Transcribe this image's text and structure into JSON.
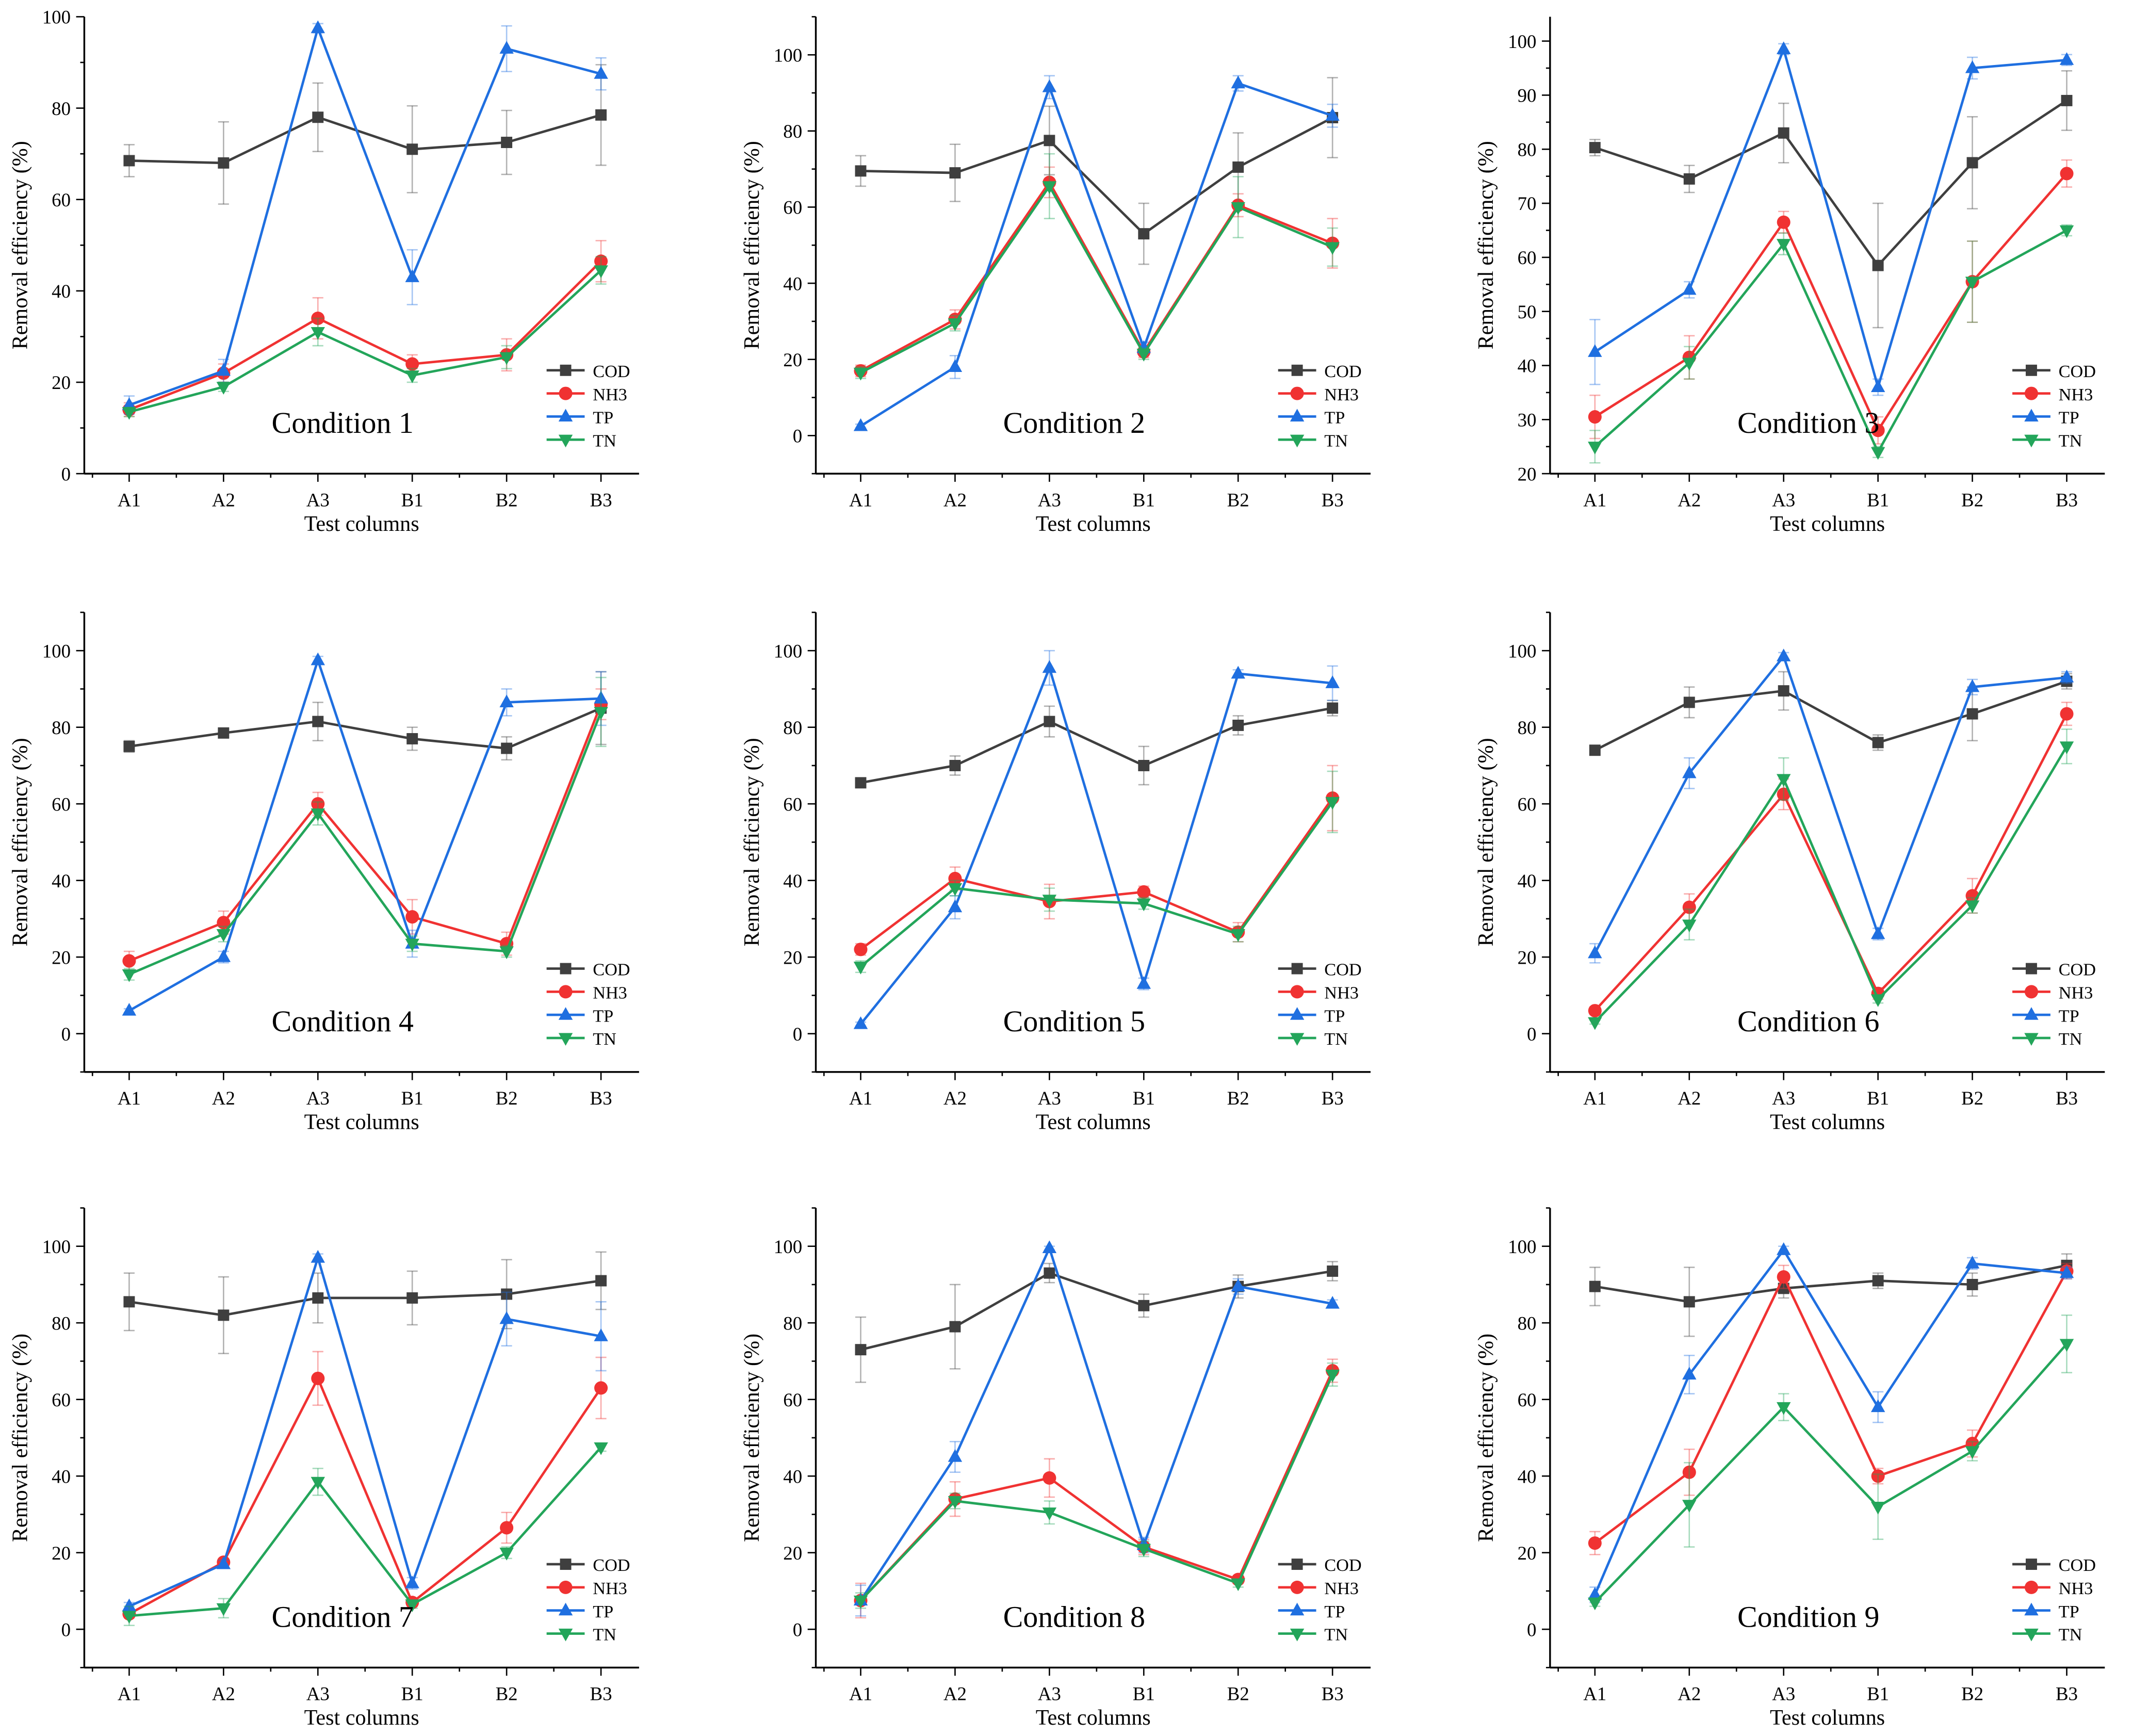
{
  "colors": {
    "COD": "#3f3f3f",
    "NH3": "#f03232",
    "TP": "#1f6fe0",
    "TN": "#23a55a",
    "axis": "#000000"
  },
  "chart_data": [
    {
      "type": "line",
      "title": "Condition 1",
      "xlabel": "Test columns",
      "ylabel": "Removal efficiency (%)",
      "categories": [
        "A1",
        "A2",
        "A3",
        "B1",
        "B2",
        "B3"
      ],
      "ylim": [
        0,
        100
      ],
      "yticks": [
        0,
        20,
        40,
        60,
        80,
        100
      ],
      "legend": "bottom-right",
      "grid": false,
      "series": [
        {
          "name": "COD",
          "marker": "square",
          "values": [
            68.5,
            68,
            78,
            71,
            72.5,
            78.5
          ],
          "errors": [
            3.5,
            9,
            7.5,
            9.5,
            7,
            11
          ]
        },
        {
          "name": "NH3",
          "marker": "circle",
          "values": [
            14,
            22,
            34,
            24,
            26,
            46.5
          ],
          "errors": [
            1.5,
            2,
            4.5,
            2,
            3.5,
            4.5
          ]
        },
        {
          "name": "TP",
          "marker": "triangle-up",
          "values": [
            15,
            22.5,
            97.5,
            43,
            93,
            87.5
          ],
          "errors": [
            2,
            2.5,
            1,
            6,
            5,
            3.5
          ]
        },
        {
          "name": "TN",
          "marker": "triangle-down",
          "values": [
            13.5,
            19,
            31,
            21.5,
            25.5,
            44.5
          ],
          "errors": [
            1,
            1,
            3,
            1.5,
            2.5,
            3
          ]
        }
      ]
    },
    {
      "type": "line",
      "title": "Condition 2",
      "xlabel": "Test columns",
      "ylabel": "Removal efficiency (%)",
      "categories": [
        "A1",
        "A2",
        "A3",
        "B1",
        "B2",
        "B3"
      ],
      "ylim": [
        -10,
        110
      ],
      "yticks": [
        0,
        20,
        40,
        60,
        80,
        100
      ],
      "legend": "bottom-right",
      "grid": false,
      "series": [
        {
          "name": "COD",
          "marker": "square",
          "values": [
            69.5,
            69,
            77.5,
            53,
            70.5,
            83.5
          ],
          "errors": [
            4,
            7.5,
            9,
            8,
            9,
            10.5
          ]
        },
        {
          "name": "NH3",
          "marker": "circle",
          "values": [
            17,
            30.5,
            66.5,
            22,
            60.5,
            50.5
          ],
          "errors": [
            1.5,
            2.5,
            4,
            1.5,
            3,
            6.5
          ]
        },
        {
          "name": "TP",
          "marker": "triangle-up",
          "values": [
            2.5,
            18,
            91.5,
            23,
            92.5,
            84
          ],
          "errors": [
            0.5,
            3,
            3,
            1.5,
            2,
            3
          ]
        },
        {
          "name": "TN",
          "marker": "triangle-down",
          "values": [
            16.5,
            29.5,
            65.5,
            21.5,
            60,
            49.5
          ],
          "errors": [
            1.5,
            2,
            8.5,
            1.5,
            8,
            5
          ]
        }
      ]
    },
    {
      "type": "line",
      "title": "Condition 3",
      "xlabel": "Test columns",
      "ylabel": "Removal efficiency (%)",
      "categories": [
        "A1",
        "A2",
        "A3",
        "B1",
        "B2",
        "B3"
      ],
      "ylim": [
        20,
        104.5
      ],
      "yticks": [
        20,
        30,
        40,
        50,
        60,
        70,
        80,
        90,
        100
      ],
      "legend": "bottom-right",
      "grid": false,
      "series": [
        {
          "name": "COD",
          "marker": "square",
          "values": [
            80.3,
            74.5,
            83,
            58.5,
            77.5,
            89
          ],
          "errors": [
            1.5,
            2.5,
            5.5,
            11.5,
            8.5,
            5.5
          ]
        },
        {
          "name": "NH3",
          "marker": "circle",
          "values": [
            30.5,
            41.5,
            66.5,
            28,
            55.5,
            75.5
          ],
          "errors": [
            4,
            4,
            2,
            2.5,
            7.5,
            2.5
          ]
        },
        {
          "name": "TP",
          "marker": "triangle-up",
          "values": [
            42.5,
            54,
            98.5,
            36,
            95,
            96.5
          ],
          "errors": [
            6,
            1.5,
            1,
            1.5,
            2,
            1
          ]
        },
        {
          "name": "TN",
          "marker": "triangle-down",
          "values": [
            25,
            40.5,
            62.5,
            24,
            55.5,
            65
          ],
          "errors": [
            3,
            3,
            2,
            1,
            7.5,
            1
          ]
        }
      ]
    },
    {
      "type": "line",
      "title": "Condition 4",
      "xlabel": "Test columns",
      "ylabel": "Removal efficiency (%)",
      "categories": [
        "A1",
        "A2",
        "A3",
        "B1",
        "B2",
        "B3"
      ],
      "ylim": [
        -10,
        110
      ],
      "yticks": [
        0,
        20,
        40,
        60,
        80,
        100
      ],
      "legend": "bottom-right",
      "grid": false,
      "series": [
        {
          "name": "COD",
          "marker": "square",
          "values": [
            75,
            78.5,
            81.5,
            77,
            74.5,
            85
          ],
          "errors": [
            1.5,
            1,
            5,
            3,
            3,
            9.5
          ]
        },
        {
          "name": "NH3",
          "marker": "circle",
          "values": [
            19,
            29,
            60,
            30.5,
            23.5,
            86
          ],
          "errors": [
            2.5,
            3,
            3,
            4.5,
            3,
            4
          ]
        },
        {
          "name": "TP",
          "marker": "triangle-up",
          "values": [
            6,
            20,
            97.5,
            23.5,
            86.5,
            87.5
          ],
          "errors": [
            0.5,
            1.5,
            1,
            3.5,
            3.5,
            7
          ]
        },
        {
          "name": "TN",
          "marker": "triangle-down",
          "values": [
            15.5,
            26,
            57.5,
            23.5,
            21.5,
            84
          ],
          "errors": [
            1.5,
            2,
            3,
            2,
            1.5,
            9
          ]
        }
      ]
    },
    {
      "type": "line",
      "title": "Condition 5",
      "xlabel": "Test columns",
      "ylabel": "Removal efficiency (%)",
      "categories": [
        "A1",
        "A2",
        "A3",
        "B1",
        "B2",
        "B3"
      ],
      "ylim": [
        -10,
        110
      ],
      "yticks": [
        0,
        20,
        40,
        60,
        80,
        100
      ],
      "legend": "bottom-right",
      "grid": false,
      "series": [
        {
          "name": "COD",
          "marker": "square",
          "values": [
            65.5,
            70,
            81.5,
            70,
            80.5,
            85
          ],
          "errors": [
            1,
            2.5,
            4,
            5,
            2.5,
            2
          ]
        },
        {
          "name": "NH3",
          "marker": "circle",
          "values": [
            22,
            40.5,
            34.5,
            37,
            26.5,
            61.5
          ],
          "errors": [
            1.5,
            3,
            4.5,
            1.5,
            2.5,
            8.5
          ]
        },
        {
          "name": "TP",
          "marker": "triangle-up",
          "values": [
            2.5,
            33,
            95.5,
            13,
            94,
            91.5
          ],
          "errors": [
            0.5,
            3,
            4.5,
            1.5,
            1,
            4.5
          ]
        },
        {
          "name": "TN",
          "marker": "triangle-down",
          "values": [
            17.5,
            38,
            35,
            34,
            26,
            60.5
          ],
          "errors": [
            1.5,
            2,
            3,
            1.5,
            2,
            8
          ]
        }
      ]
    },
    {
      "type": "line",
      "title": "Condition 6",
      "xlabel": "Test columns",
      "ylabel": "Removal efficiency (%)",
      "categories": [
        "A1",
        "A2",
        "A3",
        "B1",
        "B2",
        "B3"
      ],
      "ylim": [
        -10,
        110
      ],
      "yticks": [
        0,
        20,
        40,
        60,
        80,
        100
      ],
      "legend": "bottom-right",
      "grid": false,
      "series": [
        {
          "name": "COD",
          "marker": "square",
          "values": [
            74,
            86.5,
            89.5,
            76,
            83.5,
            92
          ],
          "errors": [
            1,
            4,
            5,
            2,
            7,
            2
          ]
        },
        {
          "name": "NH3",
          "marker": "circle",
          "values": [
            6,
            33,
            62.5,
            10.5,
            36,
            83.5
          ],
          "errors": [
            1,
            3.5,
            4,
            1.5,
            4.5,
            3
          ]
        },
        {
          "name": "TP",
          "marker": "triangle-up",
          "values": [
            21,
            68,
            98.5,
            26,
            90.5,
            93
          ],
          "errors": [
            2.5,
            4,
            1,
            1.5,
            2,
            1.5
          ]
        },
        {
          "name": "TN",
          "marker": "triangle-down",
          "values": [
            3,
            28.5,
            66.5,
            9,
            33.5,
            75
          ],
          "errors": [
            0.5,
            4,
            5.5,
            1,
            2,
            4.5
          ]
        }
      ]
    },
    {
      "type": "line",
      "title": "Condition 7",
      "xlabel": "Test columns",
      "ylabel": "Removal efficiency (%)",
      "categories": [
        "A1",
        "A2",
        "A3",
        "B1",
        "B2",
        "B3"
      ],
      "ylim": [
        -10,
        110
      ],
      "yticks": [
        0,
        20,
        40,
        60,
        80,
        100
      ],
      "legend": "bottom-right",
      "grid": false,
      "series": [
        {
          "name": "COD",
          "marker": "square",
          "values": [
            85.5,
            82,
            86.5,
            86.5,
            87.5,
            91
          ],
          "errors": [
            7.5,
            10,
            6.5,
            7,
            9,
            7.5
          ]
        },
        {
          "name": "NH3",
          "marker": "circle",
          "values": [
            4,
            17.5,
            65.5,
            7,
            26.5,
            63
          ],
          "errors": [
            1,
            1,
            7,
            1,
            4,
            8
          ]
        },
        {
          "name": "TP",
          "marker": "triangle-up",
          "values": [
            6,
            17,
            97,
            12,
            81,
            76.5
          ],
          "errors": [
            1,
            1,
            1,
            1.5,
            7,
            9
          ]
        },
        {
          "name": "TN",
          "marker": "triangle-down",
          "values": [
            3.5,
            5.5,
            38.5,
            6.5,
            20,
            47.5
          ],
          "errors": [
            2.5,
            2.5,
            3.5,
            1,
            1.5,
            1
          ]
        }
      ]
    },
    {
      "type": "line",
      "title": "Condition 8",
      "xlabel": "Test columns",
      "ylabel": "Removal efficiency (%)",
      "categories": [
        "A1",
        "A2",
        "A3",
        "B1",
        "B2",
        "B3"
      ],
      "ylim": [
        -10,
        110
      ],
      "yticks": [
        0,
        20,
        40,
        60,
        80,
        100
      ],
      "legend": "bottom-right",
      "grid": false,
      "series": [
        {
          "name": "COD",
          "marker": "square",
          "values": [
            73,
            79,
            93,
            84.5,
            89.5,
            93.5
          ],
          "errors": [
            8.5,
            11,
            2.5,
            3,
            3,
            2.5
          ]
        },
        {
          "name": "NH3",
          "marker": "circle",
          "values": [
            7.5,
            34,
            39.5,
            21.5,
            13,
            67.5
          ],
          "errors": [
            4.5,
            4.5,
            5,
            2,
            1,
            3
          ]
        },
        {
          "name": "TP",
          "marker": "triangle-up",
          "values": [
            7.5,
            45,
            99.5,
            22,
            89.5,
            85
          ],
          "errors": [
            4,
            4,
            0.5,
            2,
            2,
            1
          ]
        },
        {
          "name": "TN",
          "marker": "triangle-down",
          "values": [
            7.5,
            33.5,
            30.5,
            21,
            12,
            66.5
          ],
          "errors": [
            2,
            2,
            3,
            2,
            1,
            3
          ]
        }
      ]
    },
    {
      "type": "line",
      "title": "Condition 9",
      "xlabel": "Test columns",
      "ylabel": "Removal efficiency (%)",
      "categories": [
        "A1",
        "A2",
        "A3",
        "B1",
        "B2",
        "B3"
      ],
      "ylim": [
        -10,
        110
      ],
      "yticks": [
        0,
        20,
        40,
        60,
        80,
        100
      ],
      "legend": "bottom-right",
      "grid": false,
      "series": [
        {
          "name": "COD",
          "marker": "square",
          "values": [
            89.5,
            85.5,
            89,
            91,
            90,
            95
          ],
          "errors": [
            5,
            9,
            2.5,
            2,
            3,
            3
          ]
        },
        {
          "name": "NH3",
          "marker": "circle",
          "values": [
            22.5,
            41,
            92,
            40,
            48.5,
            93.5
          ],
          "errors": [
            3,
            6,
            3,
            2,
            3.5,
            2
          ]
        },
        {
          "name": "TP",
          "marker": "triangle-up",
          "values": [
            9,
            66.5,
            99,
            58,
            95.5,
            93
          ],
          "errors": [
            2,
            5,
            1,
            4,
            1.5,
            1.5
          ]
        },
        {
          "name": "TN",
          "marker": "triangle-down",
          "values": [
            7,
            32.5,
            58,
            32,
            46.5,
            74.5
          ],
          "errors": [
            1,
            11,
            3.5,
            8.5,
            2.5,
            7.5
          ]
        }
      ]
    }
  ]
}
